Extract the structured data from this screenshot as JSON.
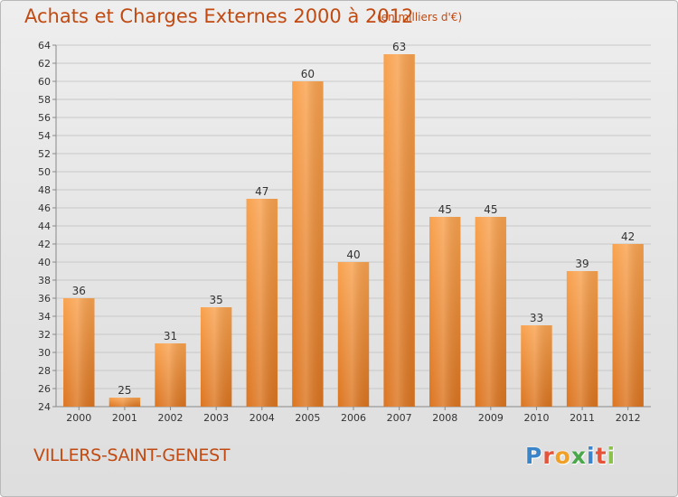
{
  "header": {
    "title": "Achats et Charges Externes 2000 à 2012",
    "subtitle": "(en milliers d'€)"
  },
  "footer": {
    "location": "VILLERS-SAINT-GENEST",
    "logo_text": "Proxiti"
  },
  "colors": {
    "bar_light": "#f9a24e",
    "bar_dark": "#dc7520",
    "title": "#c14a12",
    "logo_letters": [
      "#3a84c9",
      "#e5543a",
      "#f0a028",
      "#4aa84a",
      "#3a84c9",
      "#e5543a",
      "#8bc34a"
    ]
  },
  "chart_data": {
    "type": "bar",
    "categories": [
      "2000",
      "2001",
      "2002",
      "2003",
      "2004",
      "2005",
      "2006",
      "2007",
      "2008",
      "2009",
      "2010",
      "2011",
      "2012"
    ],
    "values": [
      36,
      25,
      31,
      35,
      47,
      60,
      40,
      63,
      45,
      45,
      33,
      39,
      42
    ],
    "ylim": [
      24,
      64
    ],
    "ytick_step": 2,
    "grid": true,
    "legend": "none"
  }
}
